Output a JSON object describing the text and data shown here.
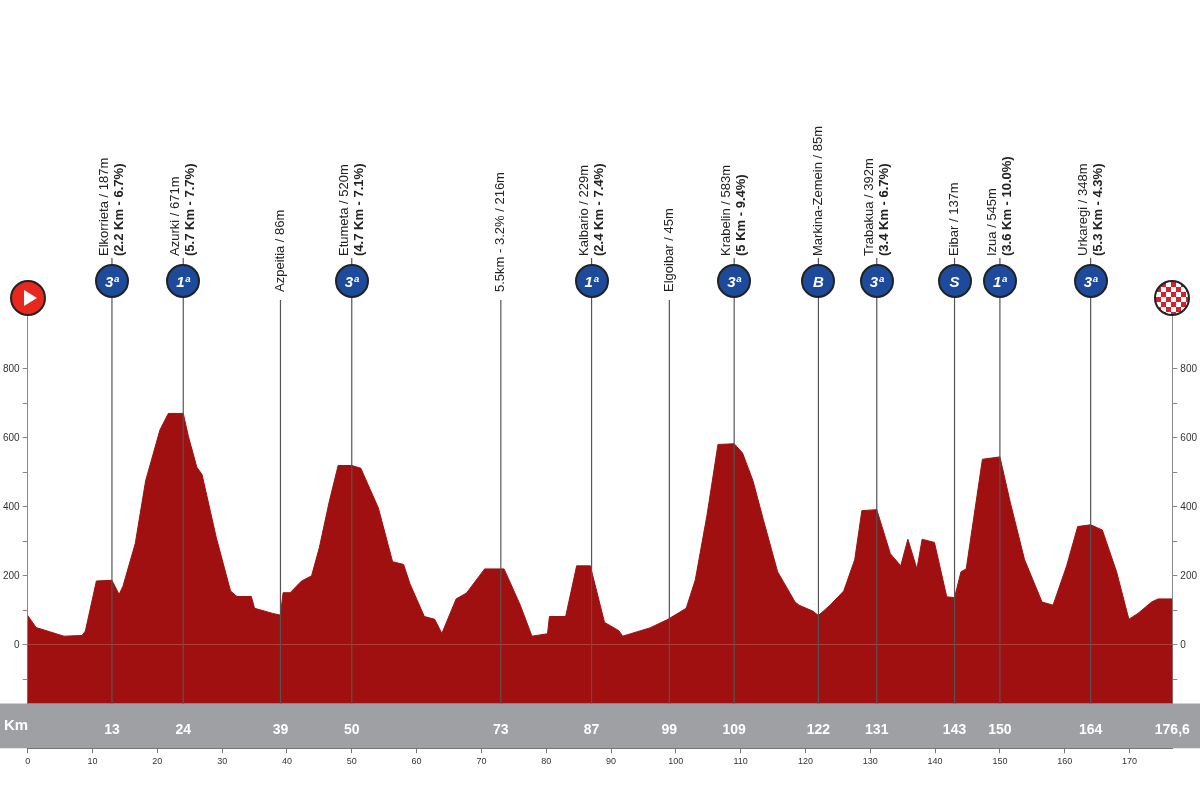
{
  "chart_data": {
    "type": "area",
    "color": "#a01010",
    "legend": false,
    "x": [
      0,
      1.3,
      5.6,
      8.4,
      8.9,
      10.6,
      13,
      14.1,
      14.7,
      16.6,
      18.2,
      20.4,
      21.7,
      24,
      24.8,
      26.1,
      26.9,
      29.1,
      31.3,
      32.3,
      34.5,
      35,
      37.8,
      39,
      39.4,
      40.5,
      42.2,
      43.8,
      45,
      46.5,
      47.9,
      50,
      51.4,
      54.1,
      56.3,
      58,
      59,
      61.2,
      62.8,
      63.9,
      66.1,
      67.7,
      70.5,
      73.5,
      76,
      77.8,
      80.2,
      80.5,
      83,
      84.7,
      86.8,
      89,
      91.2,
      91.8,
      96,
      98.8,
      101.6,
      103,
      104.8,
      106.5,
      109,
      110.3,
      111.9,
      113.5,
      115.7,
      118.4,
      119,
      121.1,
      122,
      123.8,
      125.9,
      127.6,
      128.7,
      131,
      133.1,
      134.7,
      135.8,
      137.2,
      138,
      139.9,
      141.8,
      143,
      144,
      144.8,
      147.3,
      150,
      151.6,
      153.8,
      156.5,
      158.2,
      160.3,
      162,
      164,
      165.8,
      168,
      169.9,
      171.3,
      173.4,
      174.4,
      176.6
    ],
    "values": [
      85,
      50,
      25,
      27,
      40,
      185,
      187,
      146,
      170,
      294,
      476,
      623,
      671,
      671,
      604,
      515,
      494,
      311,
      156,
      140,
      140,
      106,
      91,
      86,
      151,
      151,
      184,
      200,
      282,
      413,
      520,
      520,
      512,
      397,
      241,
      233,
      176,
      82,
      74,
      33,
      133,
      150,
      220,
      220,
      115,
      25,
      32,
      82,
      82,
      229,
      229,
      65,
      41,
      25,
      49,
      74,
      106,
      188,
      375,
      581,
      583,
      556,
      476,
      363,
      212,
      124,
      115,
      98,
      85,
      115,
      156,
      247,
      389,
      392,
      264,
      229,
      306,
      220,
      306,
      297,
      139,
      137,
      212,
      220,
      538,
      545,
      413,
      247,
      124,
      115,
      229,
      343,
      348,
      333,
      212,
      74,
      91,
      124,
      133,
      133
    ],
    "xlim": [
      0,
      176.6
    ],
    "xticks": [
      0,
      10,
      20,
      30,
      40,
      50,
      60,
      70,
      80,
      90,
      100,
      110,
      120,
      130,
      140,
      150,
      160,
      170
    ],
    "x2lim": [
      0,
      176.6
    ],
    "x2label": "Km",
    "x2ticks": [
      13,
      24,
      39,
      50,
      73,
      87,
      99,
      109,
      122,
      131,
      143,
      150,
      164,
      {
        "value": 176.6,
        "label": "176,6"
      }
    ],
    "ylim": [
      -170,
      1000
    ],
    "yticks": [
      {
        "value": -100,
        "label": null
      },
      0,
      {
        "value": 100,
        "label": null
      },
      200,
      {
        "value": 300,
        "label": null
      },
      400,
      {
        "value": 500,
        "label": null
      },
      600,
      {
        "value": 700,
        "label": null
      },
      800
    ],
    "y2lim": [
      -170,
      1000
    ],
    "y2ticks": [
      {
        "value": -100,
        "label": null
      },
      0,
      {
        "value": 100,
        "label": null
      },
      200,
      {
        "value": 300,
        "label": null
      },
      400,
      {
        "value": 500,
        "label": null
      },
      600,
      {
        "value": 700,
        "label": null
      },
      800
    ],
    "ref_lines": [
      {
        "axis": "x",
        "value": 13,
        "label": "Elkorrieta / 187m\n(2.2 Km - 6.7%)",
        "color": "#555555"
      },
      {
        "axis": "x",
        "value": 24,
        "label": "Azurki / 671m\n(5.7 Km - 7.7%)",
        "color": "#555555"
      },
      {
        "axis": "x",
        "value": 39,
        "label": "Azpeitia / 86m",
        "color": "#555555"
      },
      {
        "axis": "x",
        "value": 50,
        "label": "Etumeta / 520m\n(4.7 Km - 7.1%)",
        "color": "#555555"
      },
      {
        "axis": "x",
        "value": 73,
        "label": "5.5km - 3.2% / 216m",
        "color": "#555555"
      },
      {
        "axis": "x",
        "value": 87,
        "label": "Kalbario / 229m\n(2.4 Km - 7.4%)",
        "color": "#555555"
      },
      {
        "axis": "x",
        "value": 99,
        "label": "Elgoibar / 45m",
        "color": "#555555"
      },
      {
        "axis": "x",
        "value": 109,
        "label": "Krabelin / 583m\n(5 Km - 9.4%)",
        "color": "#555555"
      },
      {
        "axis": "x",
        "value": 122,
        "label": "Markina-Zemein / 85m",
        "color": "#555555"
      },
      {
        "axis": "x",
        "value": 131,
        "label": "Trabakua / 392m\n(3.4 Km - 6.7%)",
        "color": "#555555"
      },
      {
        "axis": "x",
        "value": 143,
        "label": "Eibar / 137m",
        "color": "#555555"
      },
      {
        "axis": "x",
        "value": 150,
        "label": "Izua / 545m\n(3.6 Km - 10.0%)",
        "color": "#555555"
      },
      {
        "axis": "x",
        "value": 164,
        "label": "Urkaregi / 348m\n(5.3 Km - 4.3%)",
        "color": "#555555"
      }
    ],
    "bands": [
      {
        "axis": "y",
        "from": -170,
        "to": 0,
        "color": "#a01010"
      }
    ],
    "annotations": [
      {
        "text": "3ª",
        "x": 13
      },
      {
        "text": "1ª",
        "x": 24
      },
      {
        "text": "3ª",
        "x": 50
      },
      {
        "text": "1ª",
        "x": 87
      },
      {
        "text": "3ª",
        "x": 109
      },
      {
        "text": "B",
        "x": 122
      },
      {
        "text": "3ª",
        "x": 131
      },
      {
        "text": "S",
        "x": 143
      },
      {
        "text": "1ª",
        "x": 150
      },
      {
        "text": "3ª",
        "x": 164
      }
    ]
  }
}
